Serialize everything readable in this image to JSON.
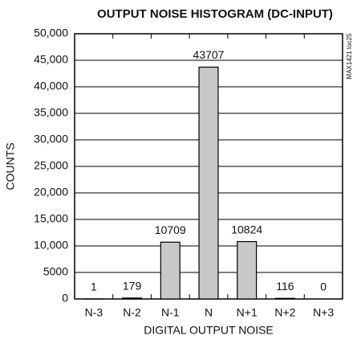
{
  "chart_data": {
    "type": "bar",
    "title": "OUTPUT NOISE HISTOGRAM (DC-INPUT)",
    "x_label": "DIGITAL OUTPUT NOISE",
    "y_label": "COUNTS",
    "annotation": "MAX1421 toc25",
    "categories": [
      "N-3",
      "N-2",
      "N-1",
      "N",
      "N+1",
      "N+2",
      "N+3"
    ],
    "values": [
      1,
      179,
      10709,
      43707,
      10824,
      116,
      0
    ],
    "color": "#c8c8c8",
    "ylim": [
      0,
      50000
    ],
    "yticks": [
      0,
      5000,
      {
        "value": 10000,
        "label": "10,000"
      },
      {
        "value": 15000,
        "label": "15,000"
      },
      {
        "value": 20000,
        "label": "20,000"
      },
      {
        "value": 25000,
        "label": "25,000"
      },
      {
        "value": 30000,
        "label": "30,000"
      },
      {
        "value": 35000,
        "label": "35,000"
      },
      {
        "value": 40000,
        "label": "40,000"
      },
      {
        "value": 45000,
        "label": "45,000"
      },
      {
        "value": 50000,
        "label": "50,000"
      }
    ],
    "grid": true
  }
}
